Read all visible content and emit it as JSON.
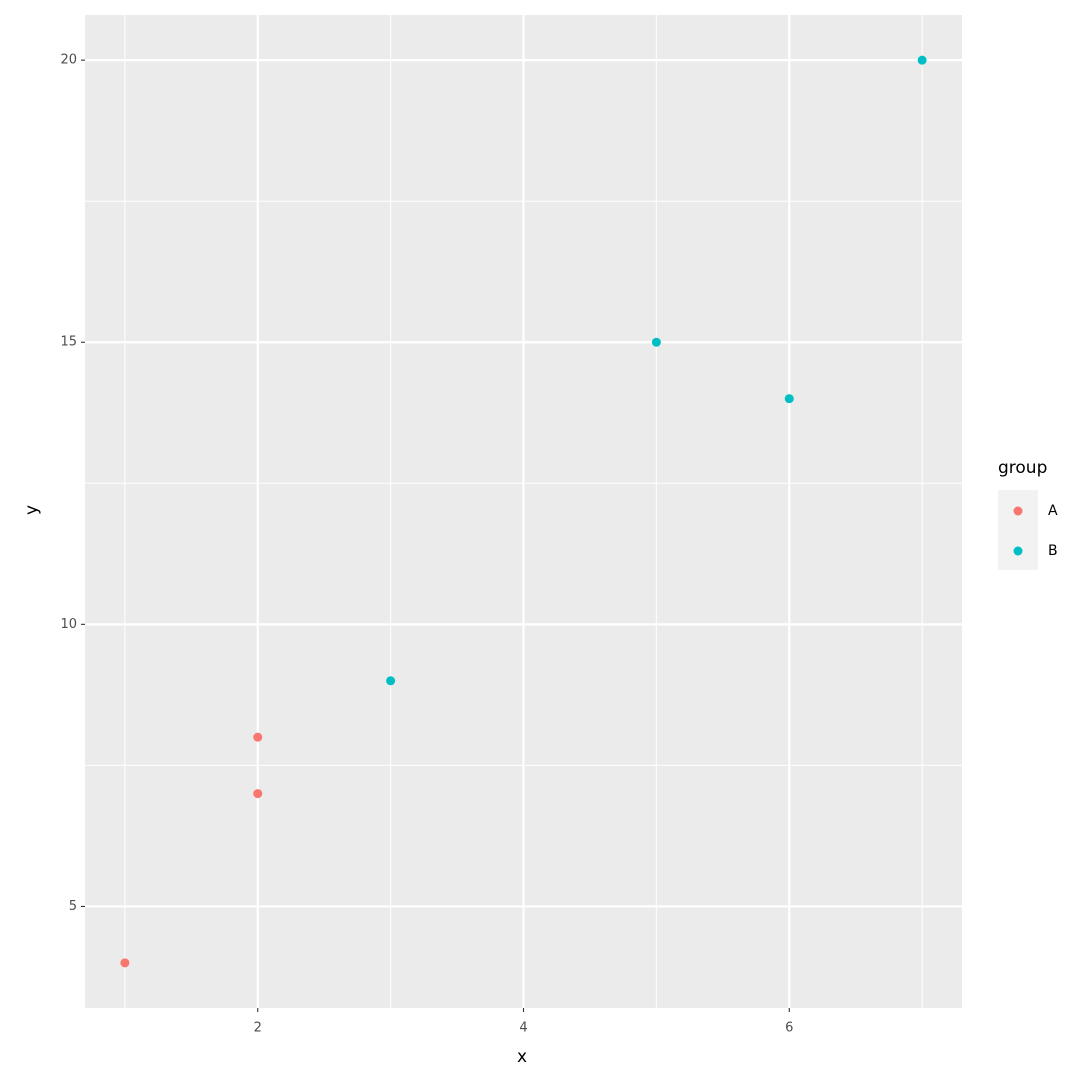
{
  "chart_data": {
    "type": "scatter",
    "xlabel": "x",
    "ylabel": "y",
    "legend_title": "group",
    "xlim": [
      0.7,
      7.3
    ],
    "ylim": [
      3.2,
      20.8
    ],
    "xticks": [
      2,
      4,
      6
    ],
    "yticks": [
      5,
      10,
      15,
      20
    ],
    "grid": true,
    "legend": "right",
    "series": [
      {
        "name": "A",
        "color": "#F8766D",
        "x": [
          1,
          2,
          2
        ],
        "y": [
          4,
          7,
          8
        ]
      },
      {
        "name": "B",
        "color": "#00BFC4",
        "x": [
          3,
          5,
          6,
          7
        ],
        "y": [
          9,
          15,
          14,
          20
        ]
      }
    ]
  }
}
